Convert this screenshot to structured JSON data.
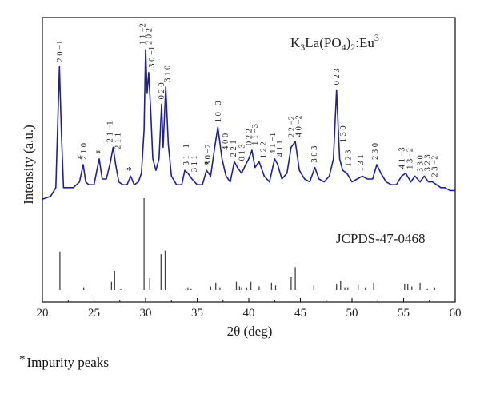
{
  "chart_data": {
    "type": "line",
    "xlabel": "2θ (deg)",
    "ylabel": "Intensity (a.u.)",
    "xlim": [
      20,
      60
    ],
    "xticks": [
      20,
      25,
      30,
      35,
      40,
      45,
      50,
      55,
      60
    ],
    "yticks": [],
    "legend_placement": "none",
    "series": [
      {
        "name": "K3La(PO4)2:Eu3+",
        "role": "measured pattern",
        "color": "#1f1fa0",
        "x": [
          20.0,
          20.8,
          21.3,
          21.45,
          21.65,
          21.85,
          22.05,
          22.4,
          23.0,
          23.6,
          23.95,
          24.2,
          24.5,
          25.0,
          25.5,
          25.8,
          26.2,
          26.6,
          26.85,
          27.1,
          27.4,
          27.8,
          28.2,
          28.55,
          28.9,
          29.3,
          29.6,
          29.85,
          30.0,
          30.15,
          30.3,
          30.5,
          30.7,
          31.0,
          31.3,
          31.55,
          31.7,
          31.95,
          32.2,
          32.5,
          33.0,
          33.5,
          33.8,
          34.1,
          34.5,
          35.0,
          35.5,
          35.9,
          36.3,
          36.7,
          37.0,
          37.4,
          37.8,
          38.2,
          38.6,
          38.9,
          39.3,
          39.7,
          40.0,
          40.3,
          40.6,
          41.0,
          41.5,
          42.0,
          42.5,
          42.8,
          43.2,
          43.7,
          44.1,
          44.5,
          44.9,
          45.4,
          45.9,
          46.4,
          46.8,
          47.3,
          47.8,
          48.2,
          48.5,
          48.8,
          49.1,
          49.5,
          50.0,
          50.5,
          51.0,
          51.5,
          52.0,
          52.4,
          52.8,
          53.3,
          53.8,
          54.3,
          54.8,
          55.2,
          55.7,
          56.1,
          56.6,
          57.0,
          57.4,
          57.8,
          58.2,
          58.6,
          59.0,
          59.5,
          60.0
        ],
        "y": [
          0.48,
          0.49,
          0.52,
          0.7,
          0.94,
          0.7,
          0.52,
          0.52,
          0.52,
          0.54,
          0.6,
          0.54,
          0.53,
          0.53,
          0.62,
          0.55,
          0.55,
          0.61,
          0.66,
          0.6,
          0.54,
          0.53,
          0.53,
          0.56,
          0.53,
          0.54,
          0.57,
          0.72,
          1.0,
          0.85,
          0.92,
          0.78,
          0.62,
          0.58,
          0.62,
          0.81,
          0.66,
          0.87,
          0.67,
          0.56,
          0.53,
          0.53,
          0.58,
          0.57,
          0.55,
          0.53,
          0.53,
          0.58,
          0.56,
          0.66,
          0.73,
          0.62,
          0.56,
          0.54,
          0.61,
          0.59,
          0.57,
          0.6,
          0.62,
          0.65,
          0.59,
          0.61,
          0.56,
          0.54,
          0.62,
          0.6,
          0.55,
          0.57,
          0.66,
          0.68,
          0.58,
          0.55,
          0.54,
          0.59,
          0.55,
          0.54,
          0.56,
          0.62,
          0.86,
          0.62,
          0.58,
          0.57,
          0.54,
          0.55,
          0.56,
          0.55,
          0.55,
          0.6,
          0.57,
          0.54,
          0.53,
          0.53,
          0.56,
          0.57,
          0.54,
          0.56,
          0.54,
          0.56,
          0.54,
          0.54,
          0.53,
          0.52,
          0.52,
          0.51,
          0.51
        ]
      },
      {
        "name": "JCPDS-47-0468",
        "role": "reference stick pattern",
        "color": "#444444",
        "type": "stick",
        "x": [
          21.7,
          24.0,
          26.7,
          27.0,
          27.6,
          29.85,
          30.4,
          31.5,
          31.9,
          33.9,
          34.1,
          34.4,
          36.3,
          36.8,
          37.2,
          38.8,
          39.1,
          39.3,
          39.8,
          40.2,
          41.0,
          42.2,
          42.6,
          44.1,
          44.5,
          46.3,
          48.5,
          48.9,
          49.3,
          49.6,
          50.6,
          51.3,
          52.1,
          55.1,
          55.4,
          55.8,
          56.6,
          57.3,
          58.0
        ],
        "y": [
          0.42,
          0.03,
          0.09,
          0.21,
          0.01,
          1.0,
          0.13,
          0.39,
          0.43,
          0.02,
          0.03,
          0.02,
          0.04,
          0.08,
          0.03,
          0.09,
          0.04,
          0.03,
          0.03,
          0.09,
          0.04,
          0.08,
          0.05,
          0.14,
          0.25,
          0.05,
          0.07,
          0.1,
          0.03,
          0.03,
          0.06,
          0.03,
          0.08,
          0.07,
          0.07,
          0.04,
          0.08,
          0.02,
          0.03
        ]
      }
    ],
    "sample_label": {
      "base": "K",
      "sub1": "3",
      "mid": "La(PO",
      "sub2": "4",
      "close": ")",
      "sub3": "2",
      "tail": ":Eu",
      "sup": "3+"
    },
    "reference_label": "JCPDS-47-0468",
    "peak_labels": [
      {
        "text": "2 0 −1",
        "x": 21.65
      },
      {
        "text": "2 1 0",
        "x": 24.0
      },
      {
        "text": "2 1 −1",
        "x": 26.5
      },
      {
        "text": "2 1 1",
        "x": 27.3
      },
      {
        "text": "1 1 −2",
        "x": 29.7
      },
      {
        "text": "3 0 −1",
        "x": 30.6
      },
      {
        "text": "2 0 2",
        "x": 30.3
      },
      {
        "text": "0 2 0",
        "x": 31.5
      },
      {
        "text": "3 1 0",
        "x": 32.1
      },
      {
        "text": "3 1 −1",
        "x": 33.9
      },
      {
        "text": "3 1 1",
        "x": 34.7
      },
      {
        "text": "3 0 −2",
        "x": 36.0
      },
      {
        "text": "1 0 −3",
        "x": 37.0
      },
      {
        "text": "4 0 0",
        "x": 37.7
      },
      {
        "text": "2 2 1",
        "x": 38.5
      },
      {
        "text": "0 1 3",
        "x": 39.3
      },
      {
        "text": "0 2 2",
        "x": 40.0
      },
      {
        "text": "1 1 −3",
        "x": 40.6
      },
      {
        "text": "1 2 2",
        "x": 41.4
      },
      {
        "text": "4 1 −1",
        "x": 42.3
      },
      {
        "text": "4 1 1",
        "x": 43.0
      },
      {
        "text": "2 2 −2",
        "x": 44.1
      },
      {
        "text": "4 0 −2",
        "x": 44.8
      },
      {
        "text": "3 0 3",
        "x": 46.3
      },
      {
        "text": "0 2 3",
        "x": 48.5
      },
      {
        "text": "1 3 0",
        "x": 49.1
      },
      {
        "text": "1 2 3",
        "x": 49.6
      },
      {
        "text": "1 3 1",
        "x": 50.8
      },
      {
        "text": "2 3 0",
        "x": 52.2
      },
      {
        "text": "4 1 −3",
        "x": 54.8
      },
      {
        "text": "1 3 −2",
        "x": 55.6
      },
      {
        "text": "3 3 0",
        "x": 56.6
      },
      {
        "text": "3 2 3",
        "x": 57.3
      },
      {
        "text": "2 3 −2",
        "x": 58.0
      }
    ],
    "impurity_markers": [
      {
        "text": "*",
        "x": 23.7
      },
      {
        "text": "*",
        "x": 25.4
      },
      {
        "text": "*",
        "x": 28.4
      },
      {
        "text": "*",
        "x": 35.9
      }
    ],
    "annotations": {
      "footnote_star": "*",
      "footnote_text": "Impurity peaks"
    }
  }
}
